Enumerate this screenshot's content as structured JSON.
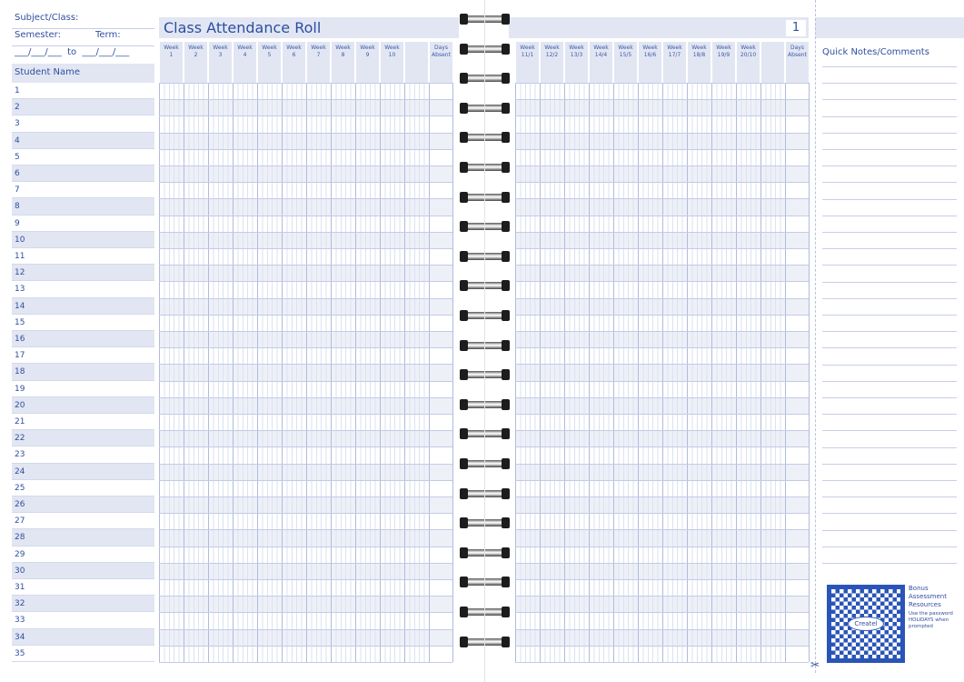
{
  "left_panel": {
    "subject_label": "Subject/Class:",
    "semester_label": "Semester:",
    "term_label": "Term:",
    "date_range": "___/___/___  to  ___/___/___",
    "student_name_header": "Student Name"
  },
  "title": "Class Attendance Roll",
  "page_number": "1",
  "left_columns": [
    "Week\n1",
    "Week\n2",
    "Week\n3",
    "Week\n4",
    "Week\n5",
    "Week\n6",
    "Week\n7",
    "Week\n8",
    "Week\n9",
    "Week\n10",
    "",
    "Days\nAbsent"
  ],
  "right_columns": [
    "Week\n11/1",
    "Week\n12/2",
    "Week\n13/3",
    "Week\n14/4",
    "Week\n15/5",
    "Week\n16/6",
    "Week\n17/7",
    "Week\n18/8",
    "Week\n19/9",
    "Week\n20/10",
    "",
    "Days\nAbsent"
  ],
  "student_rows": [
    "1",
    "2",
    "3",
    "4",
    "5",
    "6",
    "7",
    "8",
    "9",
    "10",
    "11",
    "12",
    "13",
    "14",
    "15",
    "16",
    "17",
    "18",
    "19",
    "20",
    "21",
    "22",
    "23",
    "24",
    "25",
    "26",
    "27",
    "28",
    "29",
    "30",
    "31",
    "32",
    "33",
    "34",
    "35"
  ],
  "notes": {
    "header": "Quick Notes/Comments"
  },
  "promo": {
    "title": "Bonus Assessment Resources",
    "text": "Use the password HOLIDAYS when prompted",
    "logo": "Createl"
  },
  "colors": {
    "text": "#2f4f9e",
    "shade": "#e2e6f3",
    "lines": "#c7cfe6"
  }
}
